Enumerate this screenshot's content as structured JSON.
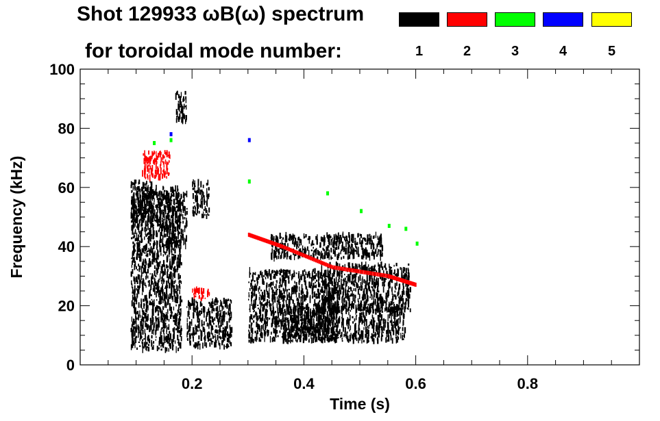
{
  "title_line1": "Shot 129933 ωB(ω) spectrum",
  "title_line2": "for toroidal mode number:",
  "legend": [
    {
      "label": "1",
      "color": "#000000"
    },
    {
      "label": "2",
      "color": "#ff0000"
    },
    {
      "label": "3",
      "color": "#00ff00"
    },
    {
      "label": "4",
      "color": "#0000ff"
    },
    {
      "label": "5",
      "color": "#ffff00"
    }
  ],
  "chart_data": {
    "type": "heatmap",
    "xlabel": "Time (s)",
    "ylabel": "Frequency (kHz)",
    "xlim": [
      0.0,
      1.0
    ],
    "ylim": [
      0,
      100
    ],
    "x_ticks": [
      0.2,
      0.4,
      0.6,
      0.8
    ],
    "y_ticks": [
      0,
      20,
      40,
      60,
      80,
      100
    ],
    "series": [
      {
        "name": "1",
        "color": "#000000",
        "blobs": [
          {
            "t": [
              0.09,
              0.13
            ],
            "f": [
              46,
              62
            ]
          },
          {
            "t": [
              0.09,
              0.18
            ],
            "f": [
              5,
              60
            ]
          },
          {
            "t": [
              0.14,
              0.19
            ],
            "f": [
              40,
              58
            ]
          },
          {
            "t": [
              0.17,
              0.19
            ],
            "f": [
              82,
              92
            ]
          },
          {
            "t": [
              0.2,
              0.23
            ],
            "f": [
              50,
              62
            ]
          },
          {
            "t": [
              0.19,
              0.27
            ],
            "f": [
              6,
              22
            ]
          },
          {
            "t": [
              0.3,
              0.46
            ],
            "f": [
              8,
              32
            ]
          },
          {
            "t": [
              0.36,
              0.58
            ],
            "f": [
              8,
              20
            ]
          },
          {
            "t": [
              0.43,
              0.59
            ],
            "f": [
              18,
              34
            ]
          },
          {
            "t": [
              0.34,
              0.54
            ],
            "f": [
              36,
              44
            ]
          }
        ]
      },
      {
        "name": "2",
        "color": "#ff0000",
        "blobs": [
          {
            "t": [
              0.11,
              0.16
            ],
            "f": [
              63,
              72
            ]
          },
          {
            "t": [
              0.2,
              0.23
            ],
            "f": [
              22,
              26
            ]
          }
        ],
        "lines": [
          {
            "t": [
              0.3,
              0.36,
              0.45,
              0.55,
              0.6
            ],
            "f": [
              44,
              40,
              33,
              30,
              27
            ]
          }
        ]
      },
      {
        "name": "3",
        "color": "#00ff00",
        "dots": [
          [
            0.13,
            75
          ],
          [
            0.16,
            76
          ],
          [
            0.3,
            62
          ],
          [
            0.44,
            58
          ],
          [
            0.5,
            52
          ],
          [
            0.55,
            47
          ],
          [
            0.58,
            46
          ],
          [
            0.6,
            41
          ]
        ]
      },
      {
        "name": "4",
        "color": "#0000ff",
        "dots": [
          [
            0.3,
            76
          ],
          [
            0.16,
            78
          ]
        ]
      },
      {
        "name": "5",
        "color": "#ffff00",
        "dots": []
      }
    ]
  }
}
